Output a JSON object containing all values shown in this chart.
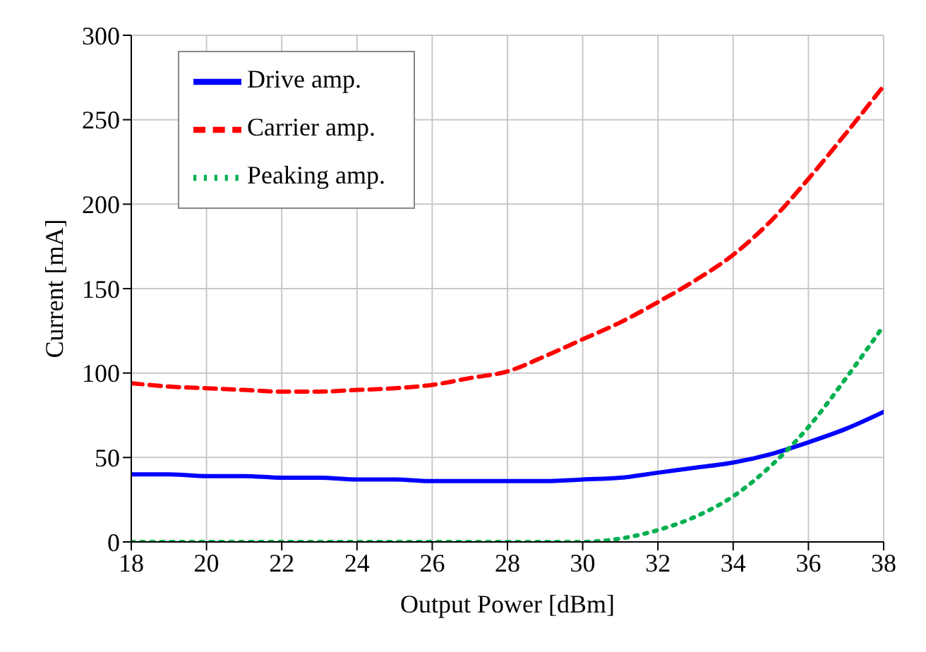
{
  "chart_data": {
    "type": "line",
    "xlabel": "Output Power [dBm]",
    "ylabel": "Current [mA]",
    "x": [
      18,
      19,
      20,
      21,
      22,
      23,
      24,
      25,
      26,
      27,
      28,
      29,
      30,
      31,
      32,
      33,
      34,
      35,
      36,
      37,
      38
    ],
    "series": [
      {
        "name": "Drive amp.",
        "color": "#0000ff",
        "line_style": "solid",
        "values": [
          40,
          40,
          39,
          39,
          38,
          38,
          37,
          37,
          36,
          36,
          36,
          36,
          37,
          38,
          41,
          44,
          47,
          52,
          59,
          67,
          77
        ]
      },
      {
        "name": "Carrier amp.",
        "color": "#ff0000",
        "line_style": "dashed",
        "values": [
          94,
          92,
          91,
          90,
          89,
          89,
          90,
          91,
          93,
          97,
          101,
          110,
          120,
          130,
          142,
          155,
          170,
          190,
          215,
          242,
          270
        ]
      },
      {
        "name": "Peaking amp.",
        "color": "#00b050",
        "line_style": "dotted",
        "values": [
          0,
          0,
          0,
          0,
          0,
          0,
          0,
          0,
          0,
          0,
          0,
          0,
          0,
          2,
          7,
          15,
          27,
          45,
          68,
          97,
          128
        ]
      }
    ],
    "xlim": [
      18,
      38
    ],
    "xticks": [
      18,
      20,
      22,
      24,
      26,
      28,
      30,
      32,
      34,
      36,
      38
    ],
    "ylim": [
      0,
      300
    ],
    "yticks": [
      0,
      50,
      100,
      150,
      200,
      250,
      300
    ],
    "grid": true,
    "legend": "top left",
    "marker": "none"
  }
}
